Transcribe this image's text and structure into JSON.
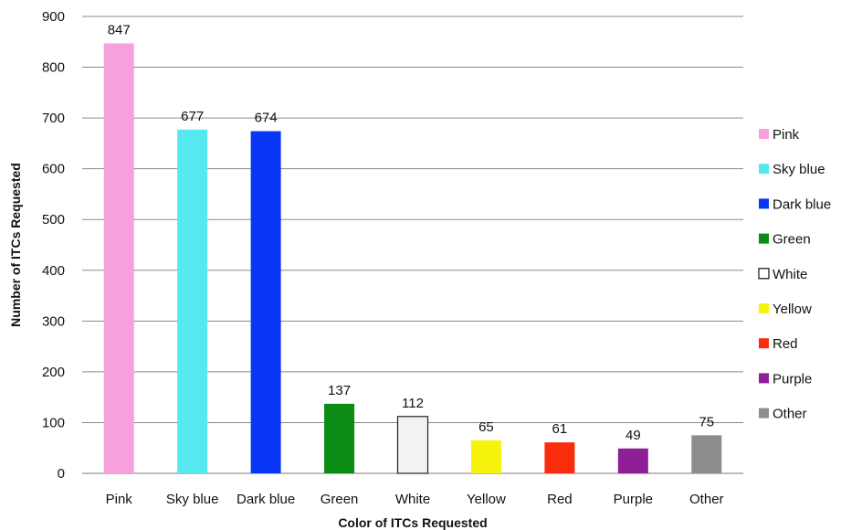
{
  "chart_data": {
    "type": "bar",
    "title": "",
    "xlabel": "Color of ITCs Requested",
    "ylabel": "Number of ITCs Requested",
    "ylim": [
      0,
      900
    ],
    "yticks": [
      "0",
      "100",
      "200",
      "300",
      "400",
      "500",
      "600",
      "700",
      "800",
      "900"
    ],
    "grid": true,
    "legend_position": "right",
    "categories": [
      "Pink",
      "Sky blue",
      "Dark blue",
      "Green",
      "White",
      "Yellow",
      "Red",
      "Purple",
      "Other"
    ],
    "values": [
      847,
      677,
      674,
      137,
      112,
      65,
      61,
      49,
      75
    ],
    "colors": [
      "#f7a1dc",
      "#55e8f0",
      "#0a37f5",
      "#0b8a14",
      "#f2f2f2",
      "#f8f30c",
      "#f92d0b",
      "#8e1f96",
      "#8d8d8d"
    ],
    "legend": [
      "Pink",
      "Sky blue",
      "Dark blue",
      "Green",
      "White",
      "Yellow",
      "Red",
      "Purple",
      "Other"
    ]
  }
}
